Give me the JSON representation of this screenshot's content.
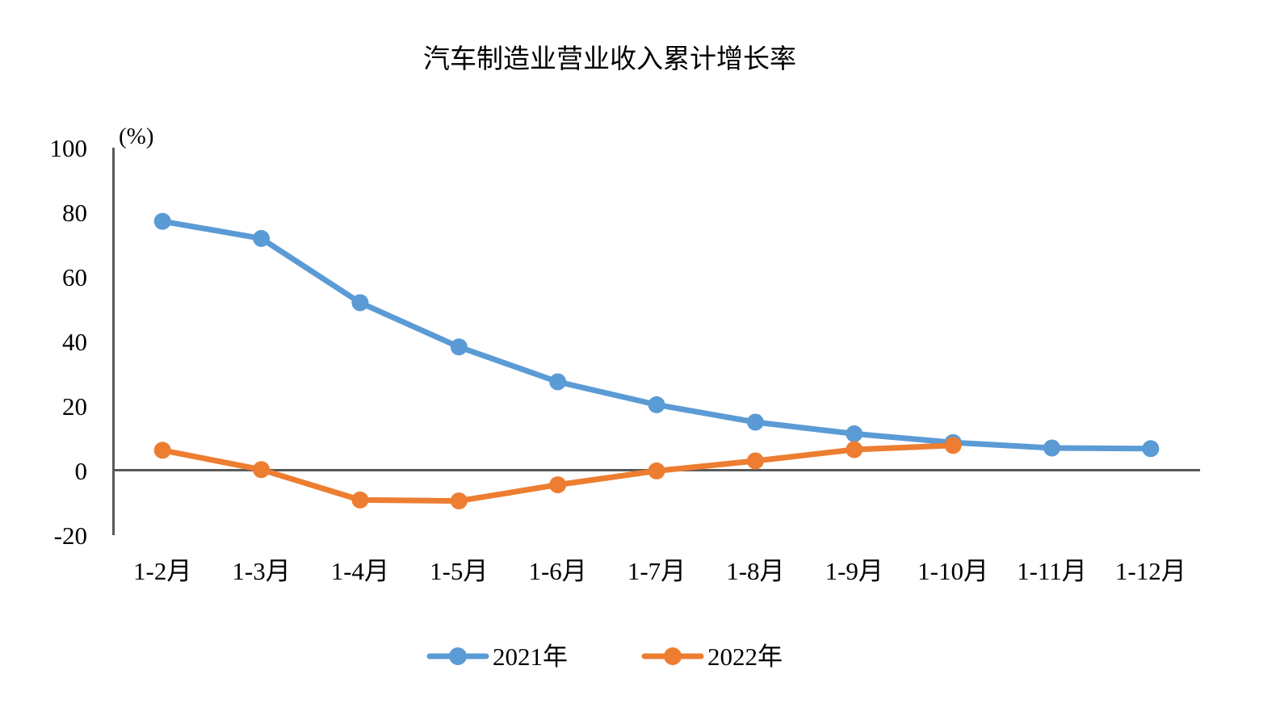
{
  "page": {
    "background_color": "#ffffff"
  },
  "chart_data": {
    "type": "line",
    "title": "汽车制造业营业收入累计增长率",
    "unit_label": "(%)",
    "xlabel": "",
    "ylabel": "",
    "categories": [
      "1-2月",
      "1-3月",
      "1-4月",
      "1-5月",
      "1-6月",
      "1-7月",
      "1-8月",
      "1-9月",
      "1-10月",
      "1-11月",
      "1-12月"
    ],
    "series": [
      {
        "name": "2021年",
        "color": "#5B9BD5",
        "values": [
          77.2,
          71.9,
          52.0,
          38.3,
          27.5,
          20.4,
          15.0,
          11.4,
          8.7,
          7.0,
          6.8
        ]
      },
      {
        "name": "2022年",
        "color": "#ED7D31",
        "values": [
          6.3,
          0.3,
          -9.1,
          -9.4,
          -4.4,
          -0.1,
          3.0,
          6.5,
          7.8
        ]
      }
    ],
    "ylim": [
      -20,
      100
    ],
    "yticks": [
      100,
      80,
      60,
      40,
      20,
      0,
      -20
    ],
    "grid": false,
    "zero_line": true,
    "legend_position": "bottom",
    "marker": "circle",
    "axis_color": "#595959",
    "text_color": "#000000"
  }
}
